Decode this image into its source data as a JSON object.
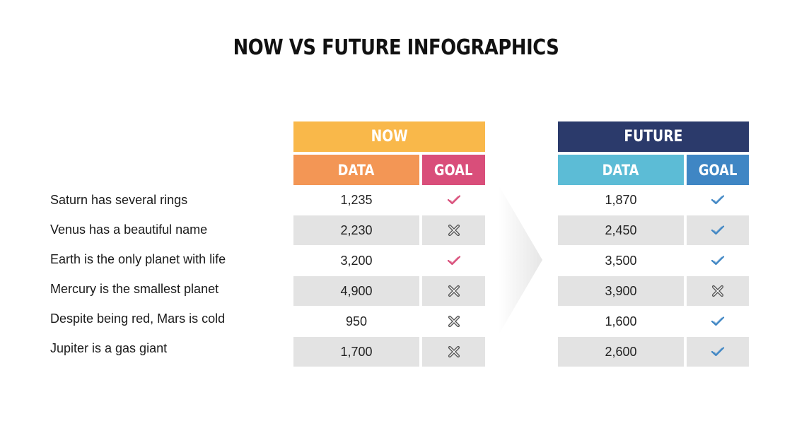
{
  "title": "NOW VS FUTURE INFOGRAPHICS",
  "colors": {
    "now_header": "#F9B84A",
    "now_data": "#F39655",
    "now_goal": "#D94E7A",
    "future_header": "#2B3A6B",
    "future_data": "#5CBCD6",
    "future_goal": "#3F86C4",
    "check_now": "#D94E7A",
    "check_future": "#3F86C4",
    "cross": "#555555"
  },
  "now": {
    "header": "NOW",
    "data_label": "DATA",
    "goal_label": "GOAL"
  },
  "future": {
    "header": "FUTURE",
    "data_label": "DATA",
    "goal_label": "GOAL"
  },
  "rows": [
    {
      "label": "Saturn has several rings",
      "now_data": "1,235",
      "now_goal": "check-icon",
      "future_data": "1,870",
      "future_goal": "check-icon"
    },
    {
      "label": "Venus has a beautiful name",
      "now_data": "2,230",
      "now_goal": "cross-icon",
      "future_data": "2,450",
      "future_goal": "check-icon"
    },
    {
      "label": "Earth is the only planet with life",
      "now_data": "3,200",
      "now_goal": "check-icon",
      "future_data": "3,500",
      "future_goal": "check-icon"
    },
    {
      "label": "Mercury is the smallest planet",
      "now_data": "4,900",
      "now_goal": "cross-icon",
      "future_data": "3,900",
      "future_goal": "cross-icon"
    },
    {
      "label": "Despite being red, Mars is cold",
      "now_data": "950",
      "now_goal": "cross-icon",
      "future_data": "1,600",
      "future_goal": "check-icon"
    },
    {
      "label": "Jupiter is a gas giant",
      "now_data": "1,700",
      "now_goal": "cross-icon",
      "future_data": "2,600",
      "future_goal": "check-icon"
    }
  ]
}
